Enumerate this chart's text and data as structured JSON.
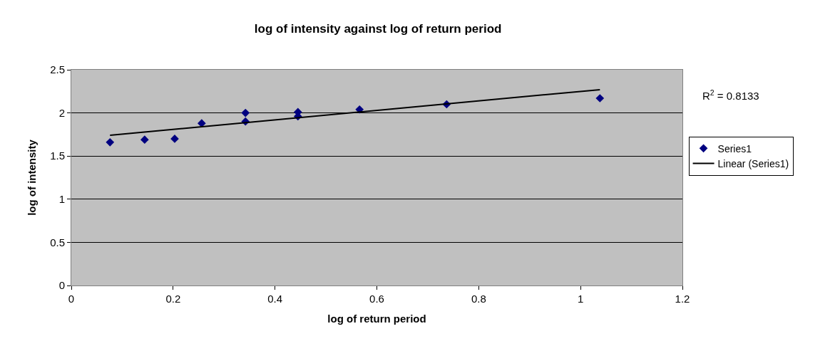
{
  "chart_data": {
    "type": "scatter",
    "title": "log of intensity against log of return period",
    "xlabel": "log of return period",
    "ylabel": "log of intensity",
    "series": [
      {
        "name": "Series1",
        "color": "#000080",
        "marker": "diamond",
        "x": [
          0.076,
          0.144,
          0.203,
          0.256,
          0.342,
          0.342,
          0.445,
          0.445,
          0.566,
          0.737,
          1.038
        ],
        "values": [
          1.66,
          1.69,
          1.7,
          1.88,
          2.0,
          1.9,
          2.01,
          1.96,
          2.04,
          2.1,
          2.17
        ]
      },
      {
        "name": "Linear (Series1)",
        "type": "line",
        "color": "#000000",
        "marker": "none",
        "line_style": "solid",
        "x": [
          0.076,
          1.038
        ],
        "values": [
          1.74,
          2.27
        ]
      }
    ],
    "xlim": [
      0,
      1.2
    ],
    "xticks": [
      0,
      0.2,
      0.4,
      0.6,
      0.8,
      1,
      1.2
    ],
    "ylim": [
      0,
      2.5
    ],
    "yticks": [
      0,
      0.5,
      1,
      1.5,
      2,
      2.5
    ],
    "grid": "y",
    "legend": "right",
    "annotations": [
      "R$^{2}$ = 0.8133"
    ]
  }
}
